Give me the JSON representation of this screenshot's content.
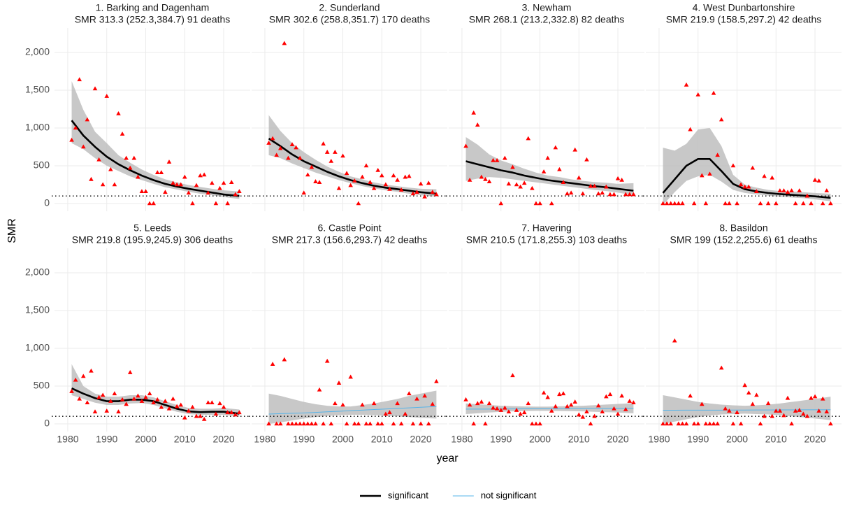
{
  "chart_data": {
    "type": "scatter",
    "y_label": "SMR",
    "x_label": "year",
    "xlim": [
      1976.6,
      2026.8
    ],
    "ylim": [
      -102,
      2324
    ],
    "xticks": [
      1980,
      1990,
      2000,
      2010,
      2020
    ],
    "yticks": [
      0,
      500,
      {
        "value": 1000,
        "label": "1,000"
      },
      {
        "value": 1500,
        "label": "1,500"
      },
      {
        "value": 2000,
        "label": "2,000"
      }
    ],
    "grid": true,
    "hline": 100,
    "point_color": "#ff0000",
    "band_color": "#bebebe",
    "legend": "bottom",
    "series": [
      {
        "name": "significant",
        "color": "#000000"
      },
      {
        "name": "not significant",
        "color": "#56B4E9"
      }
    ],
    "x": [
      1981,
      1982,
      1983,
      1984,
      1985,
      1986,
      1987,
      1988,
      1989,
      1990,
      1991,
      1992,
      1993,
      1994,
      1995,
      1996,
      1997,
      1998,
      1999,
      2000,
      2001,
      2002,
      2003,
      2004,
      2005,
      2006,
      2007,
      2008,
      2009,
      2010,
      2011,
      2012,
      2013,
      2014,
      2015,
      2016,
      2017,
      2018,
      2019,
      2020,
      2021,
      2022,
      2023,
      2024
    ],
    "fit_x": [
      1981,
      1984,
      1987,
      1990,
      1993,
      1996,
      1999,
      2002,
      2005,
      2008,
      2011,
      2014,
      2017,
      2020,
      2024
    ],
    "panels": [
      {
        "title": "1. Barking and Dagenham",
        "subtitle": "SMR 313.3 (252.3,384.7) 91 deaths",
        "fit_series": 0,
        "values": [
          840,
          1000,
          1640,
          750,
          1110,
          320,
          1520,
          580,
          250,
          1420,
          450,
          250,
          1190,
          920,
          600,
          470,
          600,
          350,
          160,
          160,
          0,
          0,
          410,
          410,
          150,
          550,
          270,
          250,
          250,
          350,
          140,
          0,
          240,
          370,
          380,
          140,
          270,
          0,
          200,
          270,
          0,
          280,
          120,
          160
        ],
        "fit": {
          "values": [
            1100,
            900,
            750,
            620,
            520,
            440,
            370,
            310,
            260,
            225,
            195,
            170,
            145,
            120,
            100
          ],
          "lower": [
            800,
            720,
            600,
            500,
            430,
            360,
            310,
            260,
            215,
            185,
            155,
            130,
            110,
            85,
            60
          ],
          "upper": [
            1620,
            1240,
            950,
            800,
            640,
            540,
            450,
            380,
            320,
            280,
            245,
            220,
            195,
            175,
            160
          ]
        }
      },
      {
        "title": "2. Sunderland",
        "subtitle": "SMR 302.6 (258.8,351.7) 170 deaths",
        "fit_series": 0,
        "values": [
          800,
          860,
          640,
          730,
          2120,
          600,
          780,
          740,
          600,
          140,
          380,
          480,
          290,
          280,
          790,
          680,
          560,
          680,
          200,
          630,
          400,
          240,
          300,
          0,
          350,
          500,
          280,
          200,
          440,
          370,
          250,
          190,
          370,
          310,
          180,
          350,
          360,
          130,
          150,
          260,
          90,
          270,
          150,
          120
        ],
        "fit": {
          "values": [
            860,
            760,
            650,
            560,
            490,
            420,
            360,
            310,
            270,
            235,
            210,
            190,
            170,
            150,
            130
          ],
          "lower": [
            640,
            600,
            530,
            470,
            410,
            360,
            310,
            270,
            230,
            200,
            175,
            155,
            130,
            110,
            90
          ],
          "upper": [
            1170,
            960,
            800,
            680,
            580,
            490,
            420,
            360,
            320,
            280,
            250,
            230,
            210,
            195,
            190
          ]
        }
      },
      {
        "title": "3. Newham",
        "subtitle": "SMR 268.1 (213.2,332.8) 82 deaths",
        "fit_series": 0,
        "values": [
          760,
          310,
          1200,
          1040,
          350,
          320,
          290,
          570,
          570,
          0,
          600,
          260,
          480,
          250,
          220,
          270,
          860,
          200,
          0,
          0,
          420,
          600,
          0,
          740,
          450,
          280,
          130,
          140,
          710,
          340,
          130,
          580,
          230,
          230,
          130,
          140,
          220,
          120,
          120,
          330,
          310,
          120,
          120,
          120
        ],
        "fit": {
          "values": [
            560,
            520,
            480,
            440,
            410,
            370,
            340,
            310,
            290,
            270,
            250,
            230,
            215,
            195,
            170
          ],
          "lower": [
            300,
            330,
            350,
            340,
            320,
            300,
            280,
            260,
            240,
            220,
            200,
            180,
            165,
            145,
            110
          ],
          "upper": [
            880,
            780,
            650,
            570,
            520,
            460,
            410,
            370,
            350,
            320,
            300,
            285,
            275,
            260,
            270
          ]
        }
      },
      {
        "title": "4. West Dunbartonshire",
        "subtitle": "SMR 219.9 (158.5,297.2) 42 deaths",
        "fit_series": 0,
        "values": [
          0,
          0,
          0,
          0,
          0,
          0,
          1570,
          980,
          0,
          1440,
          370,
          0,
          390,
          1460,
          640,
          1110,
          0,
          0,
          500,
          0,
          250,
          220,
          220,
          470,
          160,
          0,
          360,
          0,
          340,
          0,
          170,
          170,
          150,
          170,
          0,
          170,
          0,
          100,
          0,
          310,
          300,
          0,
          170,
          0
        ],
        "fit": {
          "values": [
            140,
            320,
            500,
            590,
            590,
            430,
            260,
            190,
            160,
            140,
            125,
            115,
            105,
            95,
            75
          ],
          "lower": [
            -20,
            150,
            300,
            360,
            380,
            290,
            180,
            140,
            120,
            105,
            90,
            80,
            70,
            55,
            30
          ],
          "upper": [
            740,
            700,
            790,
            980,
            1000,
            760,
            380,
            250,
            210,
            180,
            165,
            160,
            150,
            140,
            130
          ]
        }
      },
      {
        "title": "5. Leeds",
        "subtitle": "SMR 219.8 (195.9,245.9) 306 deaths",
        "fit_series": 0,
        "values": [
          430,
          580,
          330,
          630,
          280,
          700,
          160,
          350,
          380,
          170,
          300,
          400,
          160,
          320,
          260,
          680,
          330,
          370,
          300,
          350,
          400,
          280,
          320,
          220,
          300,
          200,
          330,
          230,
          250,
          80,
          170,
          220,
          100,
          100,
          60,
          280,
          280,
          130,
          270,
          220,
          150,
          150,
          120,
          150
        ],
        "fit": {
          "values": [
            470,
            400,
            340,
            300,
            300,
            320,
            320,
            300,
            250,
            200,
            165,
            155,
            160,
            160,
            135
          ],
          "lower": [
            380,
            330,
            280,
            250,
            250,
            270,
            275,
            250,
            205,
            160,
            130,
            120,
            120,
            120,
            95
          ],
          "upper": [
            790,
            500,
            400,
            360,
            360,
            380,
            380,
            350,
            300,
            250,
            210,
            200,
            200,
            210,
            190
          ]
        }
      },
      {
        "title": "6. Castle Point",
        "subtitle": "SMR 217.3 (156.6,293.7) 42 deaths",
        "fit_series": 1,
        "values": [
          0,
          790,
          0,
          0,
          850,
          0,
          0,
          0,
          0,
          0,
          0,
          0,
          0,
          450,
          0,
          830,
          0,
          270,
          540,
          250,
          0,
          620,
          0,
          0,
          250,
          0,
          0,
          270,
          0,
          0,
          130,
          150,
          0,
          270,
          0,
          130,
          400,
          0,
          330,
          0,
          370,
          0,
          260,
          560
        ],
        "fit": {
          "values": [
            130,
            135,
            140,
            145,
            152,
            160,
            167,
            175,
            182,
            190,
            197,
            205,
            212,
            220,
            230
          ],
          "lower": [
            0,
            20,
            45,
            70,
            90,
            105,
            115,
            120,
            120,
            115,
            110,
            100,
            90,
            80,
            70
          ],
          "upper": [
            400,
            370,
            330,
            290,
            260,
            240,
            230,
            230,
            250,
            270,
            300,
            330,
            370,
            400,
            440
          ]
        }
      },
      {
        "title": "7. Havering",
        "subtitle": "SMR 210.5 (171.8,255.3) 103 deaths",
        "fit_series": 1,
        "values": [
          320,
          250,
          0,
          270,
          290,
          0,
          270,
          210,
          200,
          180,
          210,
          160,
          640,
          180,
          130,
          150,
          270,
          0,
          0,
          0,
          410,
          350,
          170,
          230,
          390,
          400,
          230,
          250,
          290,
          120,
          90,
          160,
          0,
          100,
          240,
          160,
          360,
          390,
          200,
          130,
          370,
          190,
          300,
          280
        ],
        "fit": {
          "values": [
            195,
            195,
            196,
            197,
            198,
            199,
            200,
            200,
            201,
            202,
            203,
            204,
            205,
            206,
            207
          ],
          "lower": [
            130,
            140,
            150,
            160,
            165,
            170,
            172,
            172,
            170,
            168,
            165,
            160,
            155,
            150,
            140
          ],
          "upper": [
            270,
            260,
            250,
            240,
            235,
            230,
            228,
            228,
            232,
            236,
            240,
            248,
            256,
            264,
            275
          ]
        }
      },
      {
        "title": "8. Basildon",
        "subtitle": "SMR 199 (152.2,255.6) 61 deaths",
        "fit_series": 1,
        "values": [
          0,
          0,
          0,
          1100,
          0,
          0,
          0,
          370,
          0,
          0,
          260,
          0,
          0,
          0,
          0,
          740,
          200,
          170,
          0,
          150,
          0,
          510,
          410,
          260,
          380,
          0,
          100,
          270,
          100,
          170,
          170,
          110,
          340,
          0,
          170,
          180,
          130,
          100,
          340,
          360,
          170,
          330,
          160,
          0
        ],
        "fit": {
          "values": [
            180,
            180,
            181,
            181,
            182,
            182,
            183,
            183,
            184,
            184,
            185,
            185,
            186,
            186,
            187
          ],
          "lower": [
            0,
            30,
            60,
            90,
            110,
            125,
            130,
            135,
            130,
            125,
            115,
            100,
            85,
            70,
            50
          ],
          "upper": [
            380,
            350,
            320,
            290,
            270,
            255,
            245,
            240,
            245,
            255,
            270,
            290,
            310,
            330,
            360
          ]
        }
      }
    ]
  }
}
